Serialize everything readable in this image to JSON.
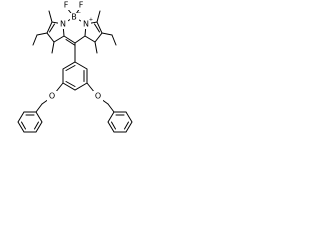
{
  "labels": {
    "f1": "F",
    "f2": "F",
    "b": "B",
    "b_charge": "−",
    "n1": "N",
    "n2": "N",
    "n2_charge": "+",
    "o1": "O",
    "o2": "O"
  }
}
